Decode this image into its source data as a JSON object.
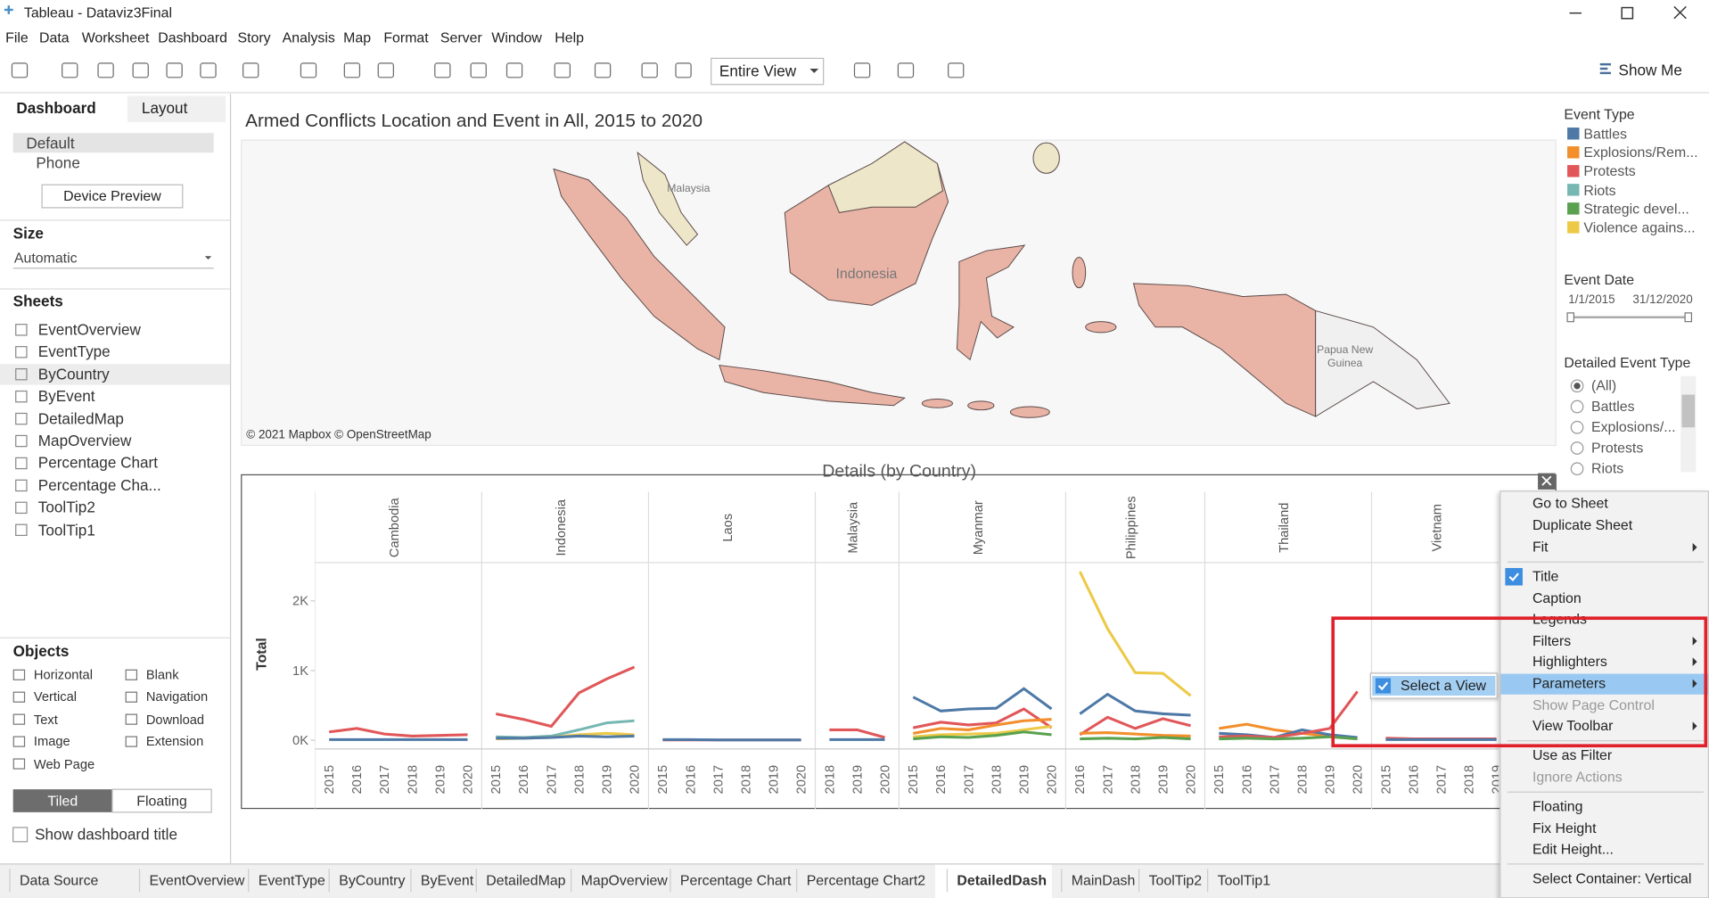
{
  "window": {
    "title": "Tableau - Dataviz3Final"
  },
  "menu": [
    "File",
    "Data",
    "Worksheet",
    "Dashboard",
    "Story",
    "Analysis",
    "Map",
    "Format",
    "Server",
    "Window",
    "Help"
  ],
  "toolbar": {
    "fit": "Entire View",
    "show_me": "Show Me"
  },
  "left_panel": {
    "tabs": [
      "Dashboard",
      "Layout"
    ],
    "devices": [
      "Default",
      "Phone"
    ],
    "device_preview": "Device Preview",
    "size_heading": "Size",
    "size_value": "Automatic",
    "sheets_heading": "Sheets",
    "sheets": [
      "EventOverview",
      "EventType",
      "ByCountry",
      "ByEvent",
      "DetailedMap",
      "MapOverview",
      "Percentage Chart",
      "Percentage Cha...",
      "ToolTip2",
      "ToolTip1"
    ],
    "objects_heading": "Objects",
    "objects": [
      "Horizontal",
      "Blank",
      "Vertical",
      "Navigation",
      "Text",
      "Download",
      "Image",
      "Extension",
      "Web Page"
    ],
    "layout_modes": [
      "Tiled",
      "Floating"
    ],
    "show_title": "Show dashboard title"
  },
  "dashboard": {
    "title": "Armed Conflicts Location and Event in All, 2015 to 2020",
    "map_labels": [
      "Malaysia",
      "Indonesia",
      "Papua New",
      "Guinea"
    ],
    "map_credit": "© 2021 Mapbox © OpenStreetMap"
  },
  "legend": {
    "title": "Event Type",
    "items": [
      {
        "name": "Battles",
        "color": "#4e79a7"
      },
      {
        "name": "Explosions/Rem...",
        "color": "#f28e2b"
      },
      {
        "name": "Protests",
        "color": "#e15759"
      },
      {
        "name": "Riots",
        "color": "#76b7b2"
      },
      {
        "name": "Strategic devel...",
        "color": "#59a14f"
      },
      {
        "name": "Violence agains...",
        "color": "#edc948"
      }
    ]
  },
  "filters": {
    "date_title": "Event Date",
    "date_start": "1/1/2015",
    "date_end": "31/12/2020",
    "detailed_title": "Detailed Event Type",
    "detailed_options": [
      "(All)",
      "Battles",
      "Explosions/...",
      "Protests",
      "Riots"
    ]
  },
  "chart_data": {
    "type": "line",
    "title": "Details (by Country)",
    "y_label": "Total",
    "ylim": [
      -125,
      2550
    ],
    "yticks": [
      {
        "value": 0,
        "label": "0K"
      },
      {
        "value": 1000,
        "label": "1K"
      },
      {
        "value": 2000,
        "label": "2K"
      }
    ],
    "panels": [
      {
        "name": "Cambodia",
        "categories": [
          "2015",
          "2016",
          "2017",
          "2018",
          "2019",
          "2020"
        ],
        "series": [
          {
            "color": "#e15759",
            "values": [
              120,
              170,
              90,
              60,
              70,
              80
            ]
          },
          {
            "color": "#4e79a7",
            "values": [
              10,
              10,
              10,
              10,
              10,
              10
            ]
          }
        ]
      },
      {
        "name": "Indonesia",
        "categories": [
          "2015",
          "2016",
          "2017",
          "2018",
          "2019",
          "2020"
        ],
        "series": [
          {
            "color": "#e15759",
            "values": [
              380,
              300,
              200,
              680,
              880,
              1050
            ]
          },
          {
            "color": "#76b7b2",
            "values": [
              50,
              40,
              60,
              150,
              250,
              280
            ]
          },
          {
            "color": "#edc948",
            "values": [
              20,
              30,
              40,
              80,
              100,
              80
            ]
          },
          {
            "color": "#4e79a7",
            "values": [
              30,
              30,
              40,
              60,
              50,
              60
            ]
          }
        ]
      },
      {
        "name": "Laos",
        "categories": [
          "2015",
          "2016",
          "2017",
          "2018",
          "2019",
          "2020"
        ],
        "series": [
          {
            "color": "#e15759",
            "values": [
              5,
              5,
              5,
              5,
              5,
              5
            ]
          },
          {
            "color": "#4e79a7",
            "values": [
              10,
              10,
              5,
              5,
              5,
              5
            ]
          }
        ]
      },
      {
        "name": "Malaysia",
        "categories": [
          "2018",
          "2019",
          "2020"
        ],
        "series": [
          {
            "color": "#e15759",
            "values": [
              150,
              150,
              40
            ]
          },
          {
            "color": "#4e79a7",
            "values": [
              10,
              10,
              10
            ]
          }
        ]
      },
      {
        "name": "Myanmar",
        "categories": [
          "2015",
          "2016",
          "2017",
          "2018",
          "2019",
          "2020"
        ],
        "series": [
          {
            "color": "#4e79a7",
            "values": [
              620,
              420,
              450,
              460,
              740,
              450
            ]
          },
          {
            "color": "#e15759",
            "values": [
              180,
              260,
              220,
              250,
              450,
              180
            ]
          },
          {
            "color": "#f28e2b",
            "values": [
              100,
              170,
              150,
              220,
              280,
              300
            ]
          },
          {
            "color": "#edc948",
            "values": [
              50,
              80,
              90,
              100,
              150,
              200
            ]
          },
          {
            "color": "#59a14f",
            "values": [
              20,
              50,
              40,
              70,
              120,
              80
            ]
          }
        ]
      },
      {
        "name": "Philippines",
        "categories": [
          "2016",
          "2017",
          "2018",
          "2019",
          "2020"
        ],
        "series": [
          {
            "color": "#edc948",
            "values": [
              2420,
              1600,
              970,
              960,
              640
            ]
          },
          {
            "color": "#4e79a7",
            "values": [
              380,
              660,
              420,
              380,
              360
            ]
          },
          {
            "color": "#e15759",
            "values": [
              80,
              330,
              170,
              310,
              210
            ]
          },
          {
            "color": "#f28e2b",
            "values": [
              100,
              110,
              90,
              70,
              60
            ]
          },
          {
            "color": "#59a14f",
            "values": [
              20,
              30,
              20,
              40,
              20
            ]
          }
        ]
      },
      {
        "name": "Thailand",
        "categories": [
          "2015",
          "2016",
          "2017",
          "2018",
          "2019",
          "2020"
        ],
        "series": [
          {
            "color": "#f28e2b",
            "values": [
              170,
              230,
              150,
              100,
              60,
              30
            ]
          },
          {
            "color": "#4e79a7",
            "values": [
              100,
              80,
              40,
              150,
              80,
              40
            ]
          },
          {
            "color": "#e15759",
            "values": [
              50,
              60,
              40,
              100,
              170,
              700
            ]
          },
          {
            "color": "#59a14f",
            "values": [
              20,
              30,
              20,
              30,
              50,
              20
            ]
          }
        ]
      },
      {
        "name": "Vietnam",
        "categories": [
          "2015",
          "2016",
          "2017",
          "2018",
          "2019"
        ],
        "series": [
          {
            "color": "#e15759",
            "values": [
              30,
              20,
              20,
              20,
              20
            ]
          },
          {
            "color": "#4e79a7",
            "values": [
              10,
              10,
              10,
              10,
              10
            ]
          }
        ]
      }
    ]
  },
  "context_menu": {
    "items": [
      {
        "label": "Go to Sheet"
      },
      {
        "label": "Duplicate Sheet"
      },
      {
        "label": "Fit",
        "submenu": true
      },
      {
        "label": "Title",
        "state": "checked"
      },
      {
        "label": "Caption"
      },
      {
        "label": "Legends"
      },
      {
        "label": "Filters",
        "submenu": true
      },
      {
        "label": "Highlighters",
        "submenu": true
      },
      {
        "label": "Parameters",
        "submenu": true,
        "state": "highlighted"
      },
      {
        "label": "Show Page Control",
        "state": "disabled"
      },
      {
        "label": "View Toolbar",
        "submenu": true
      },
      {
        "label": "Use as Filter"
      },
      {
        "label": "Ignore Actions",
        "state": "disabled"
      },
      {
        "label": "Floating"
      },
      {
        "label": "Fix Height"
      },
      {
        "label": "Edit Height..."
      },
      {
        "label": "Select Container: Vertical"
      }
    ],
    "submenu": {
      "label": "Select a View"
    }
  },
  "tabs": {
    "items": [
      "Data Source",
      "EventOverview",
      "EventType",
      "ByCountry",
      "ByEvent",
      "DetailedMap",
      "MapOverview",
      "Percentage Chart",
      "Percentage Chart2",
      "DetailedDash",
      "MainDash",
      "ToolTip2",
      "ToolTip1"
    ],
    "active": "DetailedDash"
  }
}
